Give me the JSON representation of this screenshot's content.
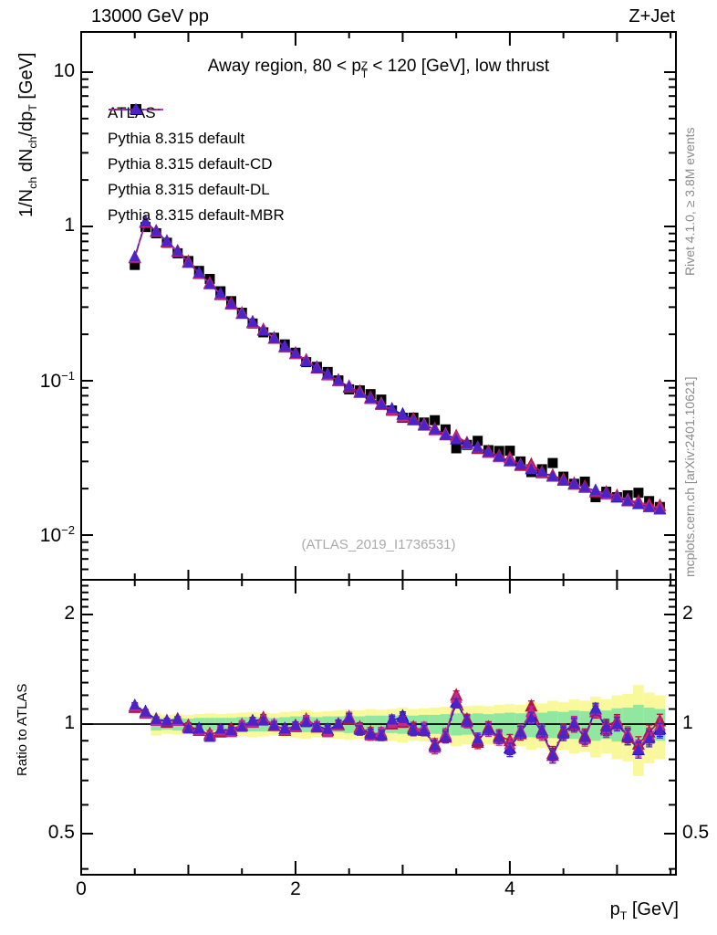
{
  "header": {
    "left": "13000 GeV pp",
    "right": "Z+Jet"
  },
  "title_segments": [
    {
      "t": "Away region, 80 < p"
    },
    {
      "stack_sup": "Z",
      "stack_sub": "T"
    },
    {
      "t": " < 120 [GeV], low thrust"
    }
  ],
  "legend": [
    {
      "label": "ATLAS",
      "marker": "square",
      "color": "#000000",
      "line": "none"
    },
    {
      "label": "Pythia 8.315 default",
      "marker": "triangle",
      "color": "#1212cc",
      "line": "solid"
    },
    {
      "label": "Pythia 8.315 default-CD",
      "marker": "triangle",
      "color": "#b2173e",
      "line": "dashdot"
    },
    {
      "label": "Pythia 8.315 default-DL",
      "marker": "triangle",
      "color": "#c02a8a",
      "line": "dashed"
    },
    {
      "label": "Pythia 8.315 default-MBR",
      "marker": "triangle",
      "color": "#4c23c8",
      "line": "dotted"
    }
  ],
  "side_notes": {
    "rivet": "Rivet 4.1.0, ≥ 3.8M events",
    "mcplots": "mcplots.cern.ch [arXiv:2401.10621]"
  },
  "watermark": "(ATLAS_2019_I1736531)",
  "axes": {
    "y_label_segments": [
      {
        "t": "1/N"
      },
      {
        "sub": "ch"
      },
      {
        "t": " dN"
      },
      {
        "sub": "ch"
      },
      {
        "t": "/dp"
      },
      {
        "sub": "T"
      },
      {
        "t": " [GeV]"
      }
    ],
    "x_label_segments": [
      {
        "t": "p"
      },
      {
        "sub": "T"
      },
      {
        "t": " [GeV]"
      }
    ],
    "ratio_label": "Ratio to ATLAS",
    "x_range": [
      0,
      5.55
    ],
    "x_tick_labels": [
      {
        "v": 0,
        "text": "0"
      },
      {
        "v": 2,
        "text": "2"
      },
      {
        "v": 4,
        "text": "4"
      }
    ],
    "y_main_tick_labels": [
      {
        "v": 10,
        "text": "10"
      },
      {
        "v": 1,
        "text": "1"
      },
      {
        "v": 0.1,
        "text": "10",
        "exp": "−1"
      },
      {
        "v": 0.01,
        "text": "10",
        "exp": "−2"
      }
    ],
    "y_main_range": [
      0.0051,
      18.2
    ],
    "ratio_tick_labels": [
      {
        "v": 2,
        "text": "2"
      },
      {
        "v": 1,
        "text": "1"
      },
      {
        "v": 0.5,
        "text": "0.5"
      }
    ],
    "ratio_range": [
      0.386,
      2.49
    ]
  },
  "chart_data": {
    "type": "line",
    "title": "Away region, 80 < pT(Z) < 120 [GeV], low thrust",
    "xlabel": "pT [GeV]",
    "ylabel": "1/Nch dNch/dpT [GeV]",
    "ratio_ylabel": "Ratio to ATLAS",
    "x_bin_width": 0.1,
    "x": [
      0.5,
      0.6,
      0.7,
      0.8,
      0.9,
      1.0,
      1.1,
      1.2,
      1.3,
      1.4,
      1.5,
      1.6,
      1.7,
      1.8,
      1.9,
      2.0,
      2.1,
      2.2,
      2.3,
      2.4,
      2.5,
      2.6,
      2.7,
      2.8,
      2.9,
      3.0,
      3.1,
      3.2,
      3.3,
      3.4,
      3.5,
      3.6,
      3.7,
      3.8,
      3.9,
      4.0,
      4.1,
      4.2,
      4.3,
      4.4,
      4.5,
      4.6,
      4.7,
      4.8,
      4.9,
      5.0,
      5.1,
      5.2,
      5.3,
      5.4
    ],
    "atlas_values": [
      0.563,
      0.991,
      0.903,
      0.784,
      0.67,
      0.597,
      0.515,
      0.457,
      0.38,
      0.328,
      0.276,
      0.235,
      0.206,
      0.19,
      0.172,
      0.152,
      0.132,
      0.123,
      0.114,
      0.1005,
      0.088,
      0.0866,
      0.0819,
      0.0755,
      0.0642,
      0.0576,
      0.0577,
      0.0536,
      0.0555,
      0.0484,
      0.0365,
      0.0384,
      0.0408,
      0.0355,
      0.0351,
      0.0352,
      0.03,
      0.0256,
      0.0267,
      0.0293,
      0.0239,
      0.0215,
      0.0222,
      0.0176,
      0.0191,
      0.0176,
      0.0181,
      0.0188,
      0.0166,
      0.0152
    ],
    "mc_series": [
      {
        "name": "Pythia 8.315 default",
        "ratio_to_atlas": [
          1.12,
          1.08,
          1.03,
          1.02,
          1.03,
          0.98,
          0.97,
          0.93,
          0.96,
          0.96,
          0.99,
          1.02,
          1.03,
          0.99,
          0.97,
          0.985,
          1.02,
          0.99,
          0.965,
          0.995,
          1.04,
          0.97,
          0.94,
          0.94,
          1.02,
          1.05,
          0.97,
          0.97,
          0.87,
          0.93,
          1.15,
          1.02,
          0.9,
          0.97,
          0.92,
          0.86,
          0.95,
          1.05,
          0.95,
          0.82,
          0.95,
          1.0,
          0.92,
          1.1,
          0.97,
          1.0,
          0.93,
          0.85,
          0.92,
          0.97
        ]
      },
      {
        "name": "Pythia 8.315 default-CD",
        "ratio_to_atlas": [
          1.11,
          1.07,
          1.03,
          1.01,
          1.03,
          0.99,
          0.96,
          0.94,
          0.95,
          0.97,
          0.99,
          1.01,
          1.04,
          0.99,
          0.96,
          0.99,
          1.03,
          0.98,
          0.96,
          1.0,
          1.03,
          0.98,
          0.95,
          0.93,
          1.0,
          1.01,
          0.98,
          0.96,
          0.88,
          0.92,
          1.2,
          1.03,
          0.89,
          0.98,
          0.93,
          0.9,
          0.94,
          1.12,
          0.96,
          0.83,
          0.96,
          0.99,
          0.93,
          1.08,
          0.99,
          1.02,
          0.92,
          0.88,
          0.95,
          1.02
        ]
      },
      {
        "name": "Pythia 8.315 default-DL",
        "ratio_to_atlas": [
          1.12,
          1.07,
          1.02,
          1.02,
          1.02,
          0.98,
          0.96,
          0.93,
          0.96,
          0.95,
          1.0,
          1.01,
          1.03,
          1.0,
          0.96,
          0.98,
          1.03,
          0.99,
          0.95,
          0.99,
          1.05,
          0.97,
          0.93,
          0.95,
          1.01,
          1.02,
          0.96,
          0.98,
          0.86,
          0.94,
          1.18,
          1.01,
          0.91,
          0.96,
          0.91,
          0.88,
          0.96,
          1.08,
          0.94,
          0.82,
          0.94,
          1.01,
          0.91,
          1.09,
          0.96,
          1.01,
          0.94,
          0.86,
          0.93,
          0.99
        ]
      },
      {
        "name": "Pythia 8.315 default-MBR",
        "ratio_to_atlas": [
          1.13,
          1.08,
          1.03,
          1.02,
          1.03,
          0.97,
          0.97,
          0.92,
          0.97,
          0.96,
          0.98,
          1.02,
          1.02,
          0.99,
          0.97,
          0.99,
          1.01,
          0.98,
          0.97,
          1.0,
          1.04,
          0.96,
          0.94,
          0.93,
          1.03,
          1.04,
          0.96,
          0.96,
          0.87,
          0.92,
          1.14,
          1.02,
          0.91,
          0.97,
          0.92,
          0.85,
          0.95,
          1.04,
          0.96,
          0.82,
          0.94,
          1.0,
          0.92,
          1.1,
          0.98,
          1.0,
          0.92,
          0.85,
          0.91,
          0.96
        ]
      }
    ],
    "ratio_err": [
      0.015,
      0.016,
      0.016,
      0.017,
      0.017,
      0.018,
      0.019,
      0.019,
      0.02,
      0.02,
      0.021,
      0.022,
      0.022,
      0.023,
      0.023,
      0.024,
      0.025,
      0.025,
      0.026,
      0.026,
      0.027,
      0.028,
      0.028,
      0.029,
      0.029,
      0.03,
      0.031,
      0.031,
      0.032,
      0.032,
      0.033,
      0.034,
      0.034,
      0.035,
      0.035,
      0.036,
      0.037,
      0.037,
      0.038,
      0.038,
      0.039,
      0.04,
      0.04,
      0.041,
      0.041,
      0.042,
      0.043,
      0.043,
      0.044,
      0.044
    ],
    "bands": {
      "yellow_halfwidth": [
        0,
        0,
        0.07,
        0.06,
        0.065,
        0.06,
        0.065,
        0.07,
        0.065,
        0.07,
        0.075,
        0.08,
        0.075,
        0.07,
        0.08,
        0.085,
        0.09,
        0.08,
        0.085,
        0.09,
        0.095,
        0.09,
        0.1,
        0.095,
        0.1,
        0.11,
        0.1,
        0.105,
        0.11,
        0.115,
        0.13,
        0.12,
        0.125,
        0.12,
        0.13,
        0.135,
        0.13,
        0.15,
        0.14,
        0.16,
        0.15,
        0.17,
        0.16,
        0.19,
        0.17,
        0.2,
        0.21,
        0.28,
        0.22,
        0.2
      ],
      "green_halfwidth": [
        0,
        0,
        0.04,
        0.035,
        0.04,
        0.035,
        0.04,
        0.04,
        0.04,
        0.04,
        0.045,
        0.045,
        0.045,
        0.04,
        0.045,
        0.05,
        0.05,
        0.045,
        0.05,
        0.05,
        0.055,
        0.05,
        0.055,
        0.055,
        0.055,
        0.06,
        0.055,
        0.06,
        0.06,
        0.065,
        0.07,
        0.065,
        0.07,
        0.065,
        0.07,
        0.075,
        0.07,
        0.08,
        0.075,
        0.085,
        0.08,
        0.09,
        0.085,
        0.1,
        0.09,
        0.105,
        0.11,
        0.13,
        0.11,
        0.1
      ]
    },
    "band_colors": {
      "yellow": "#f9f99c",
      "green": "#90e8a0"
    },
    "legend_position": "top-left",
    "grid": false,
    "y_scale": "log",
    "ratio_scale": "log"
  }
}
